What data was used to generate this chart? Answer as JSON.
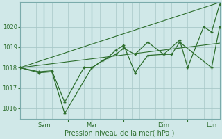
{
  "background_color": "#d0e8e8",
  "grid_color": "#a8c8c8",
  "line_color": "#2d6e2d",
  "xlabel": "Pression niveau de la mer( hPa )",
  "ylim": [
    1015.5,
    1021.2
  ],
  "yticks": [
    1016,
    1017,
    1018,
    1019,
    1020
  ],
  "xlim": [
    0,
    12.5
  ],
  "vline_positions": [
    1.5,
    4.5,
    9.0,
    12.0
  ],
  "xtick_positions": [
    1.5,
    3.0,
    4.5,
    6.5,
    9.0,
    10.5,
    12.0
  ],
  "xtick_labels": [
    "Sam",
    "",
    "Mar",
    "",
    "Dim",
    "",
    "Lun"
  ],
  "series1_x": [
    0,
    1.2,
    2.0,
    2.8,
    4.5,
    5.5,
    6.0,
    6.5,
    7.2,
    8.0,
    9.0,
    10.0,
    10.5,
    11.5,
    12.0,
    12.5
  ],
  "series1_y": [
    1018.0,
    1017.75,
    1017.8,
    1015.75,
    1018.0,
    1018.5,
    1018.85,
    1019.1,
    1017.75,
    1018.6,
    1018.65,
    1019.35,
    1018.0,
    1020.0,
    1019.75,
    1021.1
  ],
  "series2_x": [
    0,
    1.2,
    2.0,
    2.8,
    4.0,
    4.5,
    5.2,
    6.0,
    6.5,
    7.2,
    8.0,
    9.0,
    9.5,
    10.0,
    12.0,
    12.5
  ],
  "series2_y": [
    1018.0,
    1017.8,
    1017.85,
    1016.3,
    1018.0,
    1018.0,
    1018.35,
    1018.65,
    1018.95,
    1018.65,
    1019.25,
    1018.65,
    1018.65,
    1019.25,
    1018.0,
    1020.0
  ],
  "trend1_x": [
    0,
    12.5
  ],
  "trend1_y": [
    1018.0,
    1019.2
  ],
  "trend2_x": [
    0,
    12.5
  ],
  "trend2_y": [
    1018.0,
    1021.2
  ]
}
